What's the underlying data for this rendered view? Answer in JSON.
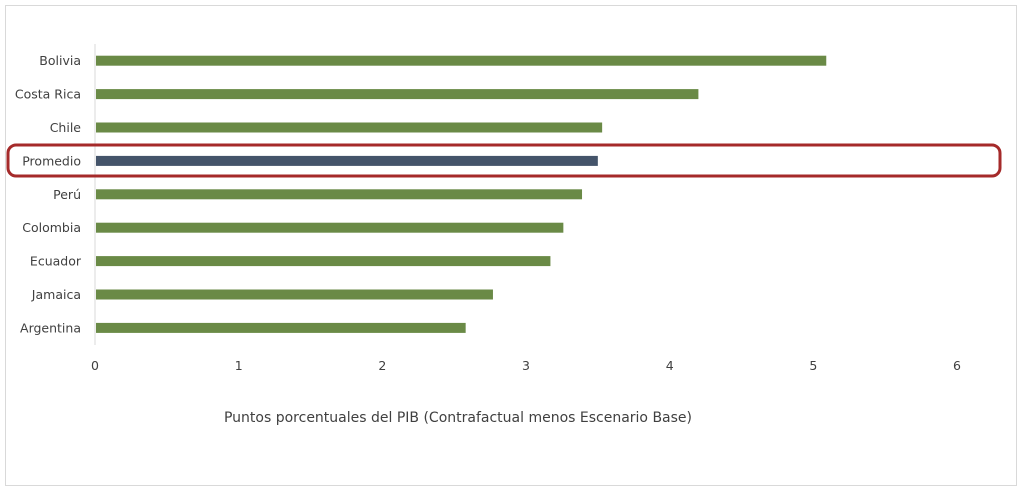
{
  "chart_data": {
    "type": "bar",
    "orientation": "horizontal",
    "categories": [
      "Bolivia",
      "Costa Rica",
      "Chile",
      "Promedio",
      "Perú",
      "Colombia",
      "Ecuador",
      "Jamaica",
      "Argentina"
    ],
    "values": [
      5.09,
      4.2,
      3.53,
      3.5,
      3.39,
      3.26,
      3.17,
      2.77,
      2.58
    ],
    "highlight": "Promedio",
    "xlabel": "Puntos porcentuales del PIB (Contrafactual menos Escenario Base)",
    "ylabel": "",
    "title": "",
    "xlim": [
      0,
      6
    ],
    "xticks": [
      "0",
      "1",
      "2",
      "3",
      "4",
      "5",
      "6"
    ],
    "grid": false,
    "colors": {
      "bar": "#6a8a46",
      "highlight_bar": "#44546a",
      "highlight_box": "#a52a2a"
    }
  }
}
